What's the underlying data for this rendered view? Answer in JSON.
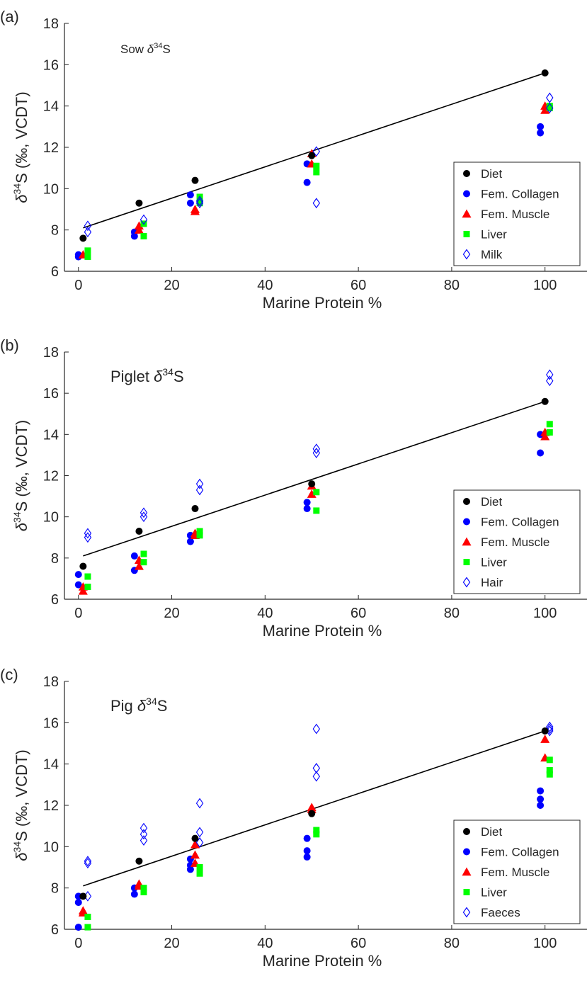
{
  "chart_data": [
    {
      "type": "scatter",
      "panel_label": "(a)",
      "inset_title_prefix": "Sow ",
      "xlabel": "Marine Protein %",
      "ylabel": "δ34S (‰, VCDT)",
      "xlim": [
        -3,
        109
      ],
      "ylim": [
        6,
        18
      ],
      "xticks": [
        0,
        20,
        40,
        60,
        80,
        100
      ],
      "yticks": [
        6,
        8,
        10,
        12,
        14,
        16,
        18
      ],
      "grid": false,
      "legend_position": "lower-right",
      "fit_line": {
        "x": [
          1,
          100
        ],
        "y": [
          8.1,
          15.6
        ]
      },
      "series": [
        {
          "name": "Diet",
          "marker": "circle",
          "color": "#000000",
          "points": [
            [
              1,
              7.6
            ],
            [
              13,
              9.3
            ],
            [
              25,
              10.4
            ],
            [
              50,
              11.6
            ],
            [
              100,
              15.6
            ]
          ]
        },
        {
          "name": "Fem. Collagen",
          "marker": "circle",
          "color": "#0000ff",
          "points": [
            [
              0,
              6.7
            ],
            [
              0,
              6.8
            ],
            [
              12,
              7.7
            ],
            [
              12,
              7.9
            ],
            [
              24,
              9.3
            ],
            [
              24,
              9.7
            ],
            [
              49,
              10.3
            ],
            [
              49,
              11.2
            ],
            [
              99,
              12.7
            ],
            [
              99,
              13.0
            ]
          ]
        },
        {
          "name": "Fem. Muscle",
          "marker": "triangle",
          "color": "#ff0000",
          "points": [
            [
              1,
              6.8
            ],
            [
              13,
              8.0
            ],
            [
              13,
              8.2
            ],
            [
              25,
              8.9
            ],
            [
              25,
              9.0
            ],
            [
              50,
              11.2
            ],
            [
              50,
              11.7
            ],
            [
              100,
              13.8
            ],
            [
              100,
              14.0
            ]
          ]
        },
        {
          "name": "Liver",
          "marker": "square",
          "color": "#00ff00",
          "points": [
            [
              2,
              6.7
            ],
            [
              2,
              7.0
            ],
            [
              14,
              7.7
            ],
            [
              14,
              8.3
            ],
            [
              26,
              9.3
            ],
            [
              26,
              9.6
            ],
            [
              51,
              10.8
            ],
            [
              51,
              11.1
            ],
            [
              101,
              13.9
            ],
            [
              101,
              14.0
            ]
          ]
        },
        {
          "name": "Milk",
          "marker": "diamond",
          "color": "#0000ff",
          "points": [
            [
              2,
              7.9
            ],
            [
              2,
              8.2
            ],
            [
              14,
              8.5
            ],
            [
              26,
              9.3
            ],
            [
              26,
              9.4
            ],
            [
              51,
              9.3
            ],
            [
              51,
              11.8
            ],
            [
              101,
              13.9
            ],
            [
              101,
              14.4
            ]
          ]
        }
      ]
    },
    {
      "type": "scatter",
      "panel_label": "(b)",
      "inset_title_prefix": "Piglet ",
      "xlabel": "Marine Protein %",
      "ylabel": "δ34S (‰, VCDT)",
      "xlim": [
        -3,
        109
      ],
      "ylim": [
        6,
        18
      ],
      "xticks": [
        0,
        20,
        40,
        60,
        80,
        100
      ],
      "yticks": [
        6,
        8,
        10,
        12,
        14,
        16,
        18
      ],
      "grid": false,
      "legend_position": "lower-right",
      "fit_line": {
        "x": [
          1,
          100
        ],
        "y": [
          8.1,
          15.6
        ]
      },
      "series": [
        {
          "name": "Diet",
          "marker": "circle",
          "color": "#000000",
          "points": [
            [
              1,
              7.6
            ],
            [
              13,
              9.3
            ],
            [
              25,
              10.4
            ],
            [
              50,
              11.6
            ],
            [
              100,
              15.6
            ]
          ]
        },
        {
          "name": "Fem. Collagen",
          "marker": "circle",
          "color": "#0000ff",
          "points": [
            [
              0,
              6.7
            ],
            [
              0,
              7.2
            ],
            [
              12,
              7.4
            ],
            [
              12,
              8.1
            ],
            [
              24,
              8.8
            ],
            [
              24,
              9.1
            ],
            [
              49,
              10.4
            ],
            [
              49,
              10.7
            ],
            [
              99,
              13.1
            ],
            [
              99,
              14.0
            ]
          ]
        },
        {
          "name": "Fem. Muscle",
          "marker": "triangle",
          "color": "#ff0000",
          "points": [
            [
              1,
              6.4
            ],
            [
              1,
              6.6
            ],
            [
              13,
              7.6
            ],
            [
              13,
              7.9
            ],
            [
              25,
              9.1
            ],
            [
              25,
              9.2
            ],
            [
              50,
              11.1
            ],
            [
              50,
              11.5
            ],
            [
              100,
              13.9
            ],
            [
              100,
              14.1
            ]
          ]
        },
        {
          "name": "Liver",
          "marker": "square",
          "color": "#00ff00",
          "points": [
            [
              2,
              6.6
            ],
            [
              2,
              7.1
            ],
            [
              14,
              7.8
            ],
            [
              14,
              8.2
            ],
            [
              26,
              9.1
            ],
            [
              26,
              9.3
            ],
            [
              51,
              10.3
            ],
            [
              51,
              11.2
            ],
            [
              101,
              14.1
            ],
            [
              101,
              14.5
            ]
          ]
        },
        {
          "name": "Hair",
          "marker": "diamond",
          "color": "#0000ff",
          "points": [
            [
              2,
              9.0
            ],
            [
              2,
              9.2
            ],
            [
              14,
              10.0
            ],
            [
              14,
              10.2
            ],
            [
              26,
              11.3
            ],
            [
              26,
              11.6
            ],
            [
              51,
              13.1
            ],
            [
              51,
              13.3
            ],
            [
              101,
              16.6
            ],
            [
              101,
              16.9
            ]
          ]
        }
      ]
    },
    {
      "type": "scatter",
      "panel_label": "(c)",
      "inset_title_prefix": "Pig ",
      "xlabel": "Marine Protein %",
      "ylabel": "δ34S (‰, VCDT)",
      "xlim": [
        -3,
        109
      ],
      "ylim": [
        6,
        18
      ],
      "xticks": [
        0,
        20,
        40,
        60,
        80,
        100
      ],
      "yticks": [
        6,
        8,
        10,
        12,
        14,
        16,
        18
      ],
      "grid": false,
      "legend_position": "lower-right",
      "fit_line": {
        "x": [
          1,
          100
        ],
        "y": [
          8.1,
          15.6
        ]
      },
      "series": [
        {
          "name": "Diet",
          "marker": "circle",
          "color": "#000000",
          "points": [
            [
              1,
              7.6
            ],
            [
              13,
              9.3
            ],
            [
              25,
              10.4
            ],
            [
              50,
              11.6
            ],
            [
              100,
              15.6
            ]
          ]
        },
        {
          "name": "Fem. Collagen",
          "marker": "circle",
          "color": "#0000ff",
          "points": [
            [
              0,
              6.1
            ],
            [
              0,
              7.3
            ],
            [
              0,
              7.6
            ],
            [
              12,
              7.7
            ],
            [
              12,
              8.0
            ],
            [
              24,
              8.9
            ],
            [
              24,
              9.1
            ],
            [
              24,
              9.4
            ],
            [
              49,
              9.5
            ],
            [
              49,
              9.8
            ],
            [
              49,
              10.4
            ],
            [
              99,
              12.0
            ],
            [
              99,
              12.3
            ],
            [
              99,
              12.7
            ]
          ]
        },
        {
          "name": "Fem. Muscle",
          "marker": "triangle",
          "color": "#ff0000",
          "points": [
            [
              1,
              6.8
            ],
            [
              1,
              6.9
            ],
            [
              13,
              8.1
            ],
            [
              13,
              8.2
            ],
            [
              25,
              9.2
            ],
            [
              25,
              9.6
            ],
            [
              25,
              10.1
            ],
            [
              50,
              11.8
            ],
            [
              50,
              11.9
            ],
            [
              100,
              14.3
            ],
            [
              100,
              15.2
            ]
          ]
        },
        {
          "name": "Liver",
          "marker": "square",
          "color": "#00ff00",
          "points": [
            [
              2,
              6.1
            ],
            [
              2,
              6.6
            ],
            [
              14,
              7.8
            ],
            [
              14,
              8.0
            ],
            [
              26,
              8.7
            ],
            [
              26,
              9.0
            ],
            [
              51,
              10.6
            ],
            [
              51,
              10.8
            ],
            [
              101,
              13.5
            ],
            [
              101,
              13.7
            ],
            [
              101,
              14.2
            ]
          ]
        },
        {
          "name": "Faeces",
          "marker": "diamond",
          "color": "#0000ff",
          "points": [
            [
              2,
              7.6
            ],
            [
              2,
              9.2
            ],
            [
              2,
              9.3
            ],
            [
              14,
              10.3
            ],
            [
              14,
              10.6
            ],
            [
              14,
              10.9
            ],
            [
              26,
              10.2
            ],
            [
              26,
              10.7
            ],
            [
              26,
              12.1
            ],
            [
              51,
              13.4
            ],
            [
              51,
              13.8
            ],
            [
              51,
              15.7
            ],
            [
              101,
              15.6
            ],
            [
              101,
              15.7
            ],
            [
              101,
              15.8
            ]
          ]
        }
      ]
    }
  ],
  "symbol_label": {
    "delta": "δ",
    "superscript": "34",
    "element": "S",
    "ylabel_suffix": " (‰, VCDT)"
  }
}
